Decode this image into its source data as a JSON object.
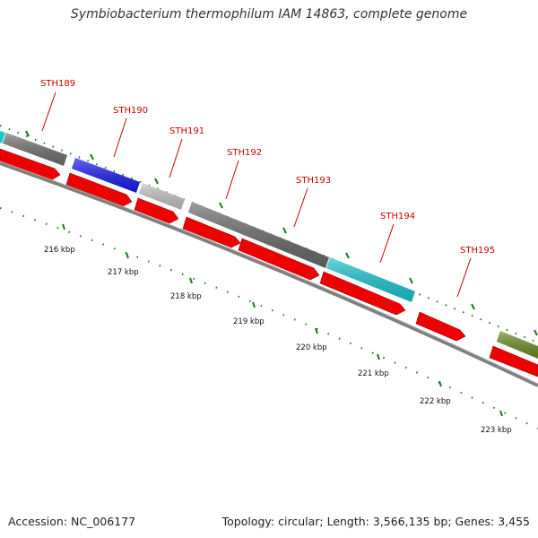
{
  "title": "Symbiobacterium thermophilum IAM 14863, complete genome",
  "footer": {
    "accession": "Accession: NC_006177",
    "summary": "Topology: circular; Length: 3,566,135 bp; Genes: 3,455"
  },
  "colors": {
    "label": "#cc0000",
    "tick": "#1f7a1f",
    "backbone": "#808080",
    "cds_forward": "#ee0000"
  },
  "gene_labels": [
    {
      "name": "STH189"
    },
    {
      "name": "STH190"
    },
    {
      "name": "STH191"
    },
    {
      "name": "STH192"
    },
    {
      "name": "STH193"
    },
    {
      "name": "STH194"
    },
    {
      "name": "STH195"
    }
  ],
  "kbp_labels": [
    "216 kbp",
    "217 kbp",
    "218 kbp",
    "219 kbp",
    "220 kbp",
    "221 kbp",
    "222 kbp",
    "223 kbp"
  ]
}
